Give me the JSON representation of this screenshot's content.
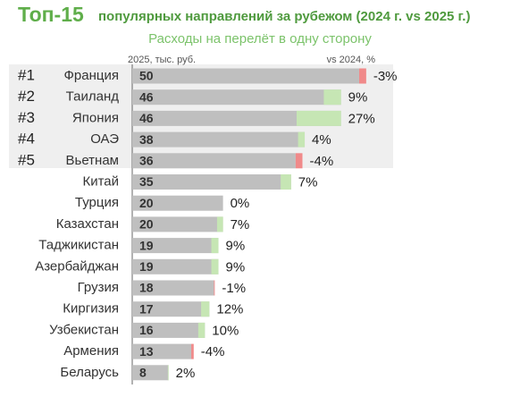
{
  "chart_data": {
    "type": "bar",
    "title": "Топ-15",
    "subtitle_title": "популярных направлений за рубежом (2024 г. vs 2025 г.)",
    "subtitle": "Расходы на перелёт в одну сторону",
    "annotations": [
      "#1",
      "#2",
      "#3",
      "#4",
      "#5"
    ],
    "categories": [
      "Франция",
      "Таиланд",
      "Япония",
      "ОАЭ",
      "Вьетнам",
      "Китай",
      "Турция",
      "Казахстан",
      "Таджикистан",
      "Азербайджан",
      "Грузия",
      "Киргизия",
      "Узбекистан",
      "Армения",
      "Беларусь"
    ],
    "series": [
      {
        "name": "2025, тыс. руб.",
        "color": "#bfbfbf",
        "values": [
          50,
          46,
          46,
          38,
          36,
          35,
          20,
          20,
          19,
          19,
          18,
          17,
          16,
          13,
          8
        ]
      },
      {
        "name": "vs 2024, %",
        "color": "#c6e6b4",
        "negative_color": "#f08a8a",
        "values": [
          -3,
          9,
          27,
          4,
          -4,
          7,
          0,
          7,
          9,
          9,
          -1,
          12,
          10,
          -4,
          2
        ],
        "value_labels": [
          "-3%",
          "9%",
          "27%",
          "4%",
          "-4%",
          "7%",
          "0%",
          "7%",
          "9%",
          "9%",
          "-1%",
          "12%",
          "10%",
          "-4%",
          "2%"
        ]
      }
    ]
  }
}
